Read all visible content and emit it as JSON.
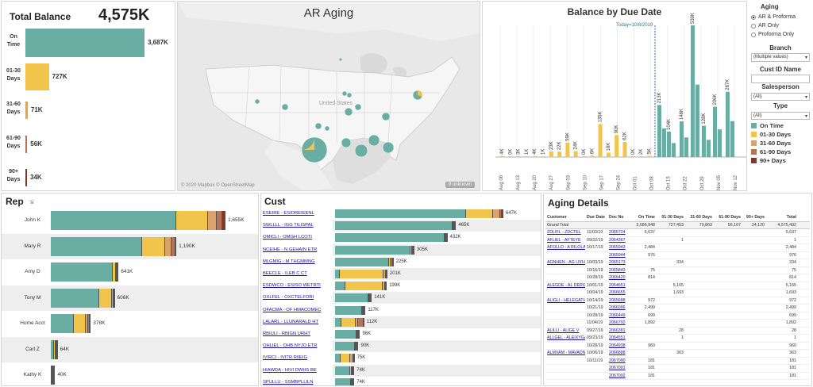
{
  "colors": {
    "on_time": "#6aaea3",
    "d01_30": "#f1c54c",
    "d31_60": "#d9a36b",
    "d61_90": "#b87356",
    "d90p": "#7a3b2e"
  },
  "total_balance": {
    "label": "Total Balance",
    "value": "4,575K",
    "rows": [
      {
        "label": "On Time",
        "value": 3687,
        "text": "3,687K",
        "color": "#6aaea3"
      },
      {
        "label": "01-30 Days",
        "value": 727,
        "text": "727K",
        "color": "#f1c54c"
      },
      {
        "label": "31-60 Days",
        "value": 71,
        "text": "71K",
        "color": "#d9a36b"
      },
      {
        "label": "61-90 Days",
        "value": 56,
        "text": "56K",
        "color": "#b87356"
      },
      {
        "label": "90+ Days",
        "value": 34,
        "text": "34K",
        "color": "#7a3b2e"
      }
    ]
  },
  "map": {
    "title": "AR Aging",
    "label_us": "United States",
    "credit": "© 2020 Mapbox © OpenStreetMap",
    "unknown": "8 unknown"
  },
  "chart_data": [
    {
      "type": "bar",
      "title": "Balance by Due Date",
      "annotation": "Today=10/8/2019",
      "x_ticks": [
        "Aug 06",
        "Aug 13",
        "Aug 20",
        "Aug 27",
        "Sep 03",
        "Sep 10",
        "Sep 17",
        "Sep 24",
        "Oct 01",
        "Oct 08",
        "Oct 15",
        "Oct 22",
        "Oct 29",
        "Nov 05",
        "Nov 12"
      ],
      "past_due_labels": [
        "4K",
        "0K",
        "3K",
        "1K",
        "4K",
        "1K",
        "23K",
        "22K",
        "59K",
        "24K",
        "0K",
        "6K",
        "135K",
        "18K",
        "90K",
        "62K",
        "0K",
        "2K",
        "5K"
      ],
      "on_time_labels": [
        "213K",
        "104K",
        "146K",
        "539K",
        "128K",
        "206K",
        "267K"
      ]
    },
    {
      "type": "bar",
      "title": "Rep",
      "categories": [
        "John K",
        "Mary R",
        "Amy D",
        "Tony M",
        "Home Acct",
        "Carl Z",
        "Kathy K"
      ],
      "values": [
        1655,
        1190,
        641,
        606,
        378,
        64,
        40
      ],
      "labels": [
        "1,655K",
        "1,190K",
        "641K",
        "606K",
        "378K",
        "64K",
        "40K"
      ]
    },
    {
      "type": "bar",
      "title": "Cust",
      "categories": [
        "ESEIRE - ESIDREIEENL",
        "SWLLLL - IGG TILISPAL",
        "OMICLI - OMGH LCOTI",
        "NCEIHE - N GEHAIN ETR",
        "MLGMIG - M THGMMNG",
        "BEECLE - ILEB C CT",
        "ESDWCO - ESISO WETRTI",
        "OXLFEL - OXCTELFORI",
        "OFACMA - OF HMACOMEC",
        "LALARL - LLUNARALD HT",
        "RBIULI - RBIGN URHT",
        "OHLIEL - OHB NYJO ETR",
        "IVIRCI - IVITR RIIEIG",
        "HIAWDA - HIVI DWHS BE",
        "SPULLU - SSMBPLLILN"
      ],
      "values": [
        647,
        465,
        432,
        305,
        225,
        201,
        199,
        141,
        117,
        112,
        96,
        90,
        75,
        74,
        74
      ],
      "labels": [
        "647K",
        "465K",
        "432K",
        "305K",
        "225K",
        "201K",
        "199K",
        "141K",
        "117K",
        "112K",
        "96K",
        "90K",
        "75K",
        "74K",
        "74K"
      ]
    }
  ],
  "filters": {
    "aging_title": "Aging",
    "aging_options": [
      "AR & Proforma",
      "AR Only",
      "Proforma Only"
    ],
    "aging_selected": 0,
    "branch_title": "Branch",
    "branch_value": "(Multiple values)",
    "cust_title": "Cust ID Name",
    "cust_value": "",
    "salesperson_title": "Salesperson",
    "salesperson_value": "(All)",
    "type_title": "Type",
    "type_value": "(All)",
    "legend": [
      {
        "label": "On Time",
        "color": "#6aaea3"
      },
      {
        "label": "01-30 Days",
        "color": "#f1c54c"
      },
      {
        "label": "31-60 Days",
        "color": "#d9a36b"
      },
      {
        "label": "61-90 Days",
        "color": "#b87356"
      },
      {
        "label": "90+ Days",
        "color": "#7a3b2e"
      }
    ]
  },
  "rep": {
    "title": "Rep",
    "filter_icon": "filter-icon"
  },
  "cust": {
    "title": "Cust"
  },
  "aging_details": {
    "title": "Aging Details",
    "headers": [
      "Customer",
      "Due Date",
      "Doc No",
      "On Time",
      "01-30 Days",
      "31-60 Days",
      "61-90 Days",
      "90+ Days",
      "Total"
    ],
    "grand": [
      "Grand Total",
      "",
      "",
      "3,686,948",
      "727,453",
      "70,863",
      "56,107",
      "34,120",
      "4,575,492"
    ],
    "rows": [
      [
        "ZDLIFL - ZDCTEL",
        "11/03/19",
        "2066724",
        "5,637",
        "",
        "",
        "",
        "",
        "5,637"
      ],
      [
        "AFLIEL - AFTEYE",
        "09/22/19",
        "2064367",
        "",
        "1",
        "",
        "",
        "",
        "1"
      ],
      [
        "AFOLLO - A RILOLANGD",
        "10/17/19",
        "2065943",
        "2,484",
        "",
        "",
        "",
        "",
        "2,484"
      ],
      [
        "",
        "",
        "2065944",
        "976",
        "",
        "",
        "",
        "",
        "976"
      ],
      [
        "AGNHEN - AG LN'HAIGNE",
        "10/03/19",
        "2065173",
        "",
        "334",
        "",
        "",
        "",
        "334"
      ],
      [
        "",
        "10/16/19",
        "2065843",
        "75",
        "",
        "",
        "",
        "",
        "75"
      ],
      [
        "",
        "10/28/19",
        "2066420",
        "814",
        "",
        "",
        "",
        "",
        "814"
      ],
      [
        "ALEGDE - AL DERGAES",
        "10/01/19",
        "2064651",
        "",
        "5,165",
        "",
        "",
        "",
        "5,165"
      ],
      [
        "",
        "10/04/19",
        "2066655",
        "",
        "1,693",
        "",
        "",
        "",
        "1,693"
      ],
      [
        "ALIGLI - HELEGATHRY L",
        "10/14/19",
        "2065688",
        "972",
        "",
        "",
        "",
        "",
        "972"
      ],
      [
        "",
        "10/21/19",
        "2066006",
        "2,499",
        "",
        "",
        "",
        "",
        "2,499"
      ],
      [
        "",
        "10/28/19",
        "2066449",
        "699",
        "",
        "",
        "",
        "",
        "699"
      ],
      [
        "",
        "11/04/19",
        "2066792",
        "1,892",
        "",
        "",
        "",
        "",
        "1,892"
      ],
      [
        "ALILLI - ALIGE V",
        "09/27/19",
        "2066381",
        "",
        "28",
        "",
        "",
        "",
        "28"
      ],
      [
        "ALLGEL - ALEIXYGAECC",
        "09/23/19",
        "2064551",
        "",
        "1",
        "",
        "",
        "",
        "1"
      ],
      [
        "",
        "10/28/19",
        "2064938",
        "960",
        "",
        "",
        "",
        "",
        "960"
      ],
      [
        "ALMVAM - MAVADNAMLDX",
        "10/06/19",
        "2066888",
        "",
        "363",
        "",
        "",
        "",
        "363"
      ],
      [
        "",
        "10/11/19",
        "2067090",
        "181",
        "",
        "",
        "",
        "",
        "181"
      ],
      [
        "",
        "",
        "2067091",
        "181",
        "",
        "",
        "",
        "",
        "181"
      ],
      [
        "",
        "",
        "2067092",
        "181",
        "",
        "",
        "",
        "",
        "181"
      ]
    ]
  }
}
